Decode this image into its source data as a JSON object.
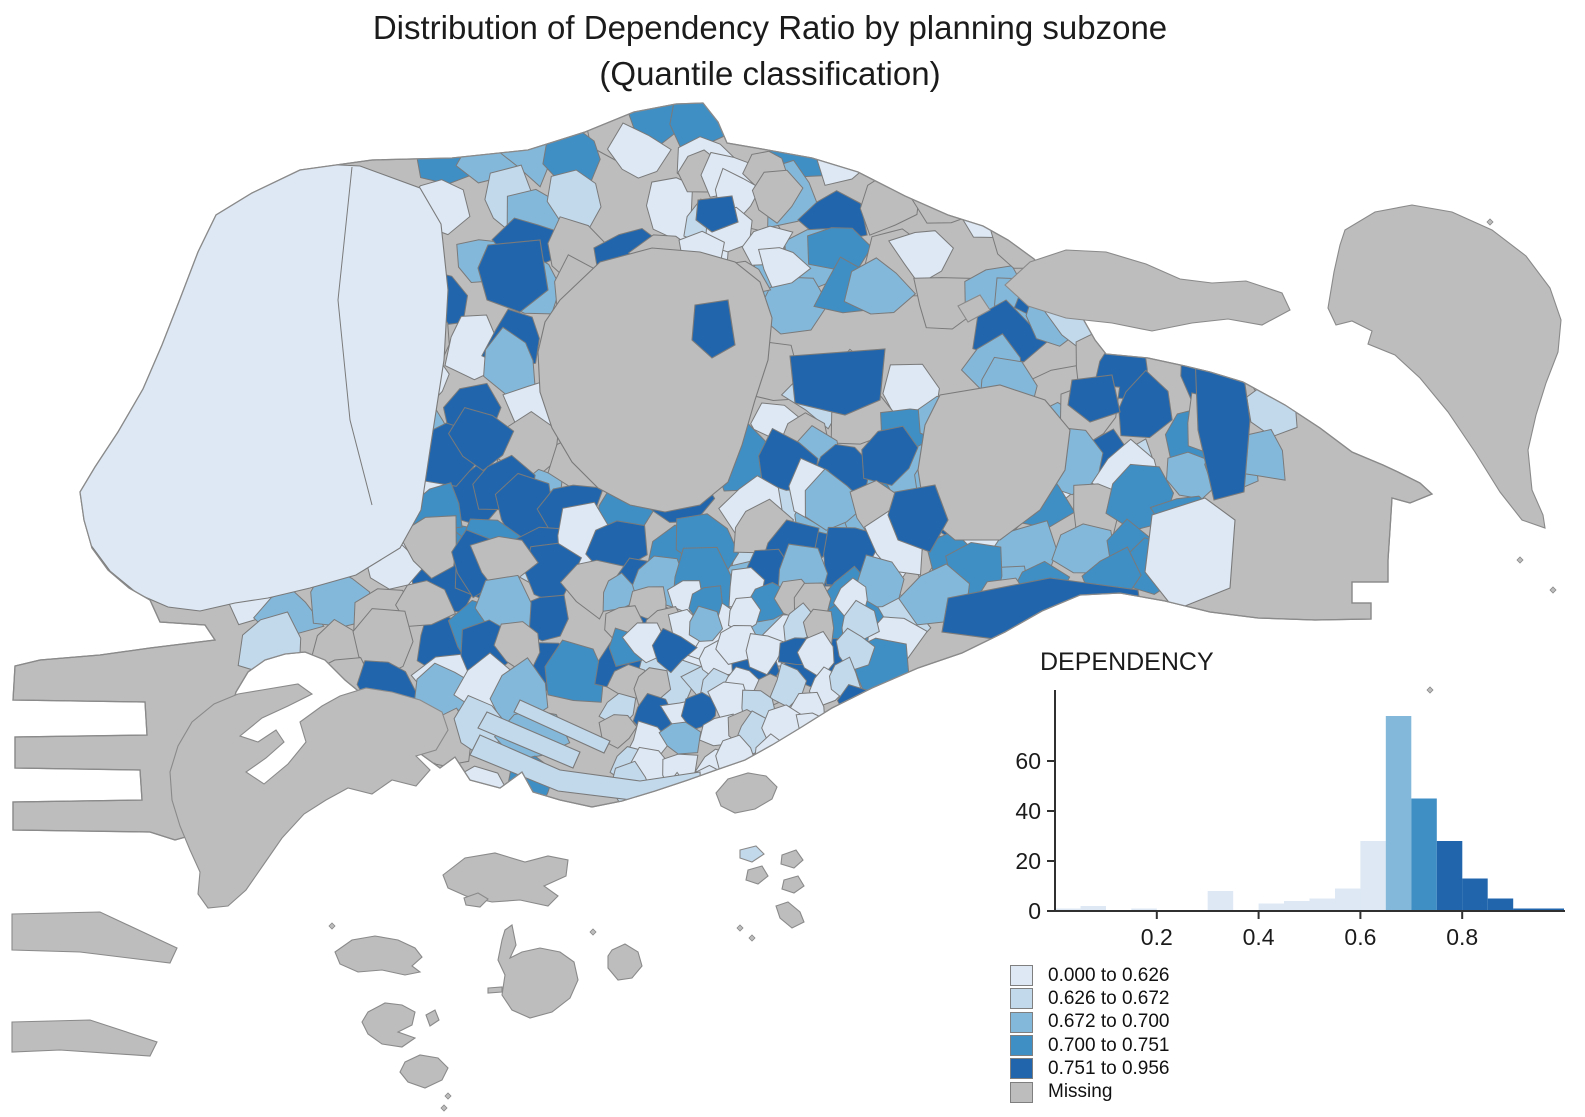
{
  "title": {
    "line1": "Distribution of Dependency Ratio by planning subzone",
    "line2": "(Quantile classification)"
  },
  "colors": {
    "background": "#ffffff",
    "palette": [
      "#dde8f4",
      "#c2d9ec",
      "#84b8da",
      "#3f8ec4",
      "#2166ac"
    ],
    "missing": "#bdbdbd",
    "border": "#7a7a7a",
    "coast": "#8a8a8a",
    "axis": "#303030",
    "text": "#1b1b1b"
  },
  "legend": {
    "classes": [
      {
        "label": "0.000 to 0.626",
        "color": "#dde8f4"
      },
      {
        "label": "0.626 to 0.672",
        "color": "#c2d9ec"
      },
      {
        "label": "0.672 to 0.700",
        "color": "#84b8da"
      },
      {
        "label": "0.700 to 0.751",
        "color": "#3f8ec4"
      },
      {
        "label": "0.751 to 0.956",
        "color": "#2166ac"
      },
      {
        "label": "Missing",
        "color": "#bdbdbd"
      }
    ]
  },
  "chart_data": {
    "type": "bar",
    "title": "DEPENDENCY",
    "xlabel": "",
    "ylabel": "",
    "xlim": [
      0,
      1.0
    ],
    "ylim": [
      0,
      80
    ],
    "x_ticks": [
      0.2,
      0.4,
      0.6,
      0.8
    ],
    "y_ticks": [
      0,
      20,
      40,
      60
    ],
    "bin_width": 0.05,
    "bins": [
      {
        "x0": 0.0,
        "count": 1,
        "class": 0
      },
      {
        "x0": 0.05,
        "count": 2,
        "class": 0
      },
      {
        "x0": 0.1,
        "count": 0,
        "class": 0
      },
      {
        "x0": 0.15,
        "count": 1,
        "class": 0
      },
      {
        "x0": 0.2,
        "count": 0,
        "class": 0
      },
      {
        "x0": 0.25,
        "count": 0,
        "class": 0
      },
      {
        "x0": 0.3,
        "count": 8,
        "class": 0
      },
      {
        "x0": 0.35,
        "count": 0,
        "class": 0
      },
      {
        "x0": 0.4,
        "count": 3,
        "class": 0
      },
      {
        "x0": 0.45,
        "count": 4,
        "class": 0
      },
      {
        "x0": 0.5,
        "count": 5,
        "class": 0
      },
      {
        "x0": 0.55,
        "count": 9,
        "class": 0
      },
      {
        "x0": 0.6,
        "count": 28,
        "class": 0
      },
      {
        "x0": 0.65,
        "count": 78,
        "class": 2
      },
      {
        "x0": 0.7,
        "count": 45,
        "class": 3
      },
      {
        "x0": 0.75,
        "count": 28,
        "class": 4
      },
      {
        "x0": 0.8,
        "count": 13,
        "class": 4
      },
      {
        "x0": 0.85,
        "count": 5,
        "class": 4
      },
      {
        "x0": 0.9,
        "count": 1,
        "class": 4
      },
      {
        "x0": 0.95,
        "count": 1,
        "class": 4
      }
    ]
  }
}
